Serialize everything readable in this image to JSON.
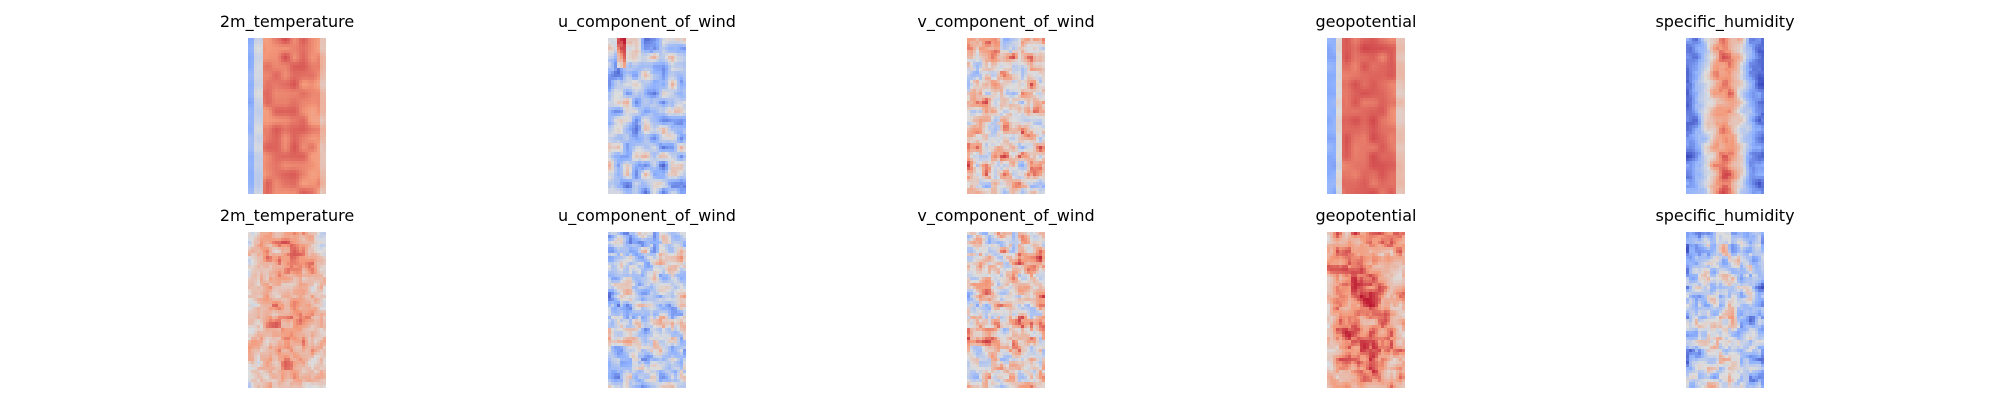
{
  "chart_data": [
    {
      "type": "heatmap",
      "row": 1,
      "title": "2m_temperature",
      "colormap": "coolwarm",
      "axes": "off",
      "pattern": "temperature"
    },
    {
      "type": "heatmap",
      "row": 1,
      "title": "u_component_of_wind",
      "colormap": "coolwarm",
      "axes": "off",
      "pattern": "uwind"
    },
    {
      "type": "heatmap",
      "row": 1,
      "title": "v_component_of_wind",
      "colormap": "coolwarm",
      "axes": "off",
      "pattern": "vwind"
    },
    {
      "type": "heatmap",
      "row": 1,
      "title": "geopotential",
      "colormap": "coolwarm",
      "axes": "off",
      "pattern": "geopotential"
    },
    {
      "type": "heatmap",
      "row": 1,
      "title": "specific_humidity",
      "colormap": "coolwarm",
      "axes": "off",
      "pattern": "humidity"
    },
    {
      "type": "heatmap",
      "row": 2,
      "title": "2m_temperature",
      "colormap": "coolwarm",
      "axes": "off",
      "pattern": "temperature_noisy"
    },
    {
      "type": "heatmap",
      "row": 2,
      "title": "u_component_of_wind",
      "colormap": "coolwarm",
      "axes": "off",
      "pattern": "uwind_noisy"
    },
    {
      "type": "heatmap",
      "row": 2,
      "title": "v_component_of_wind",
      "colormap": "coolwarm",
      "axes": "off",
      "pattern": "vwind_noisy"
    },
    {
      "type": "heatmap",
      "row": 2,
      "title": "geopotential",
      "colormap": "coolwarm",
      "axes": "off",
      "pattern": "geopotential_noisy"
    },
    {
      "type": "heatmap",
      "row": 2,
      "title": "specific_humidity",
      "colormap": "coolwarm",
      "axes": "off",
      "pattern": "humidity_noisy"
    }
  ],
  "colormap_stops": [
    "#3b4cc0",
    "#8db0fe",
    "#dddddd",
    "#f49a7b",
    "#b40426"
  ]
}
